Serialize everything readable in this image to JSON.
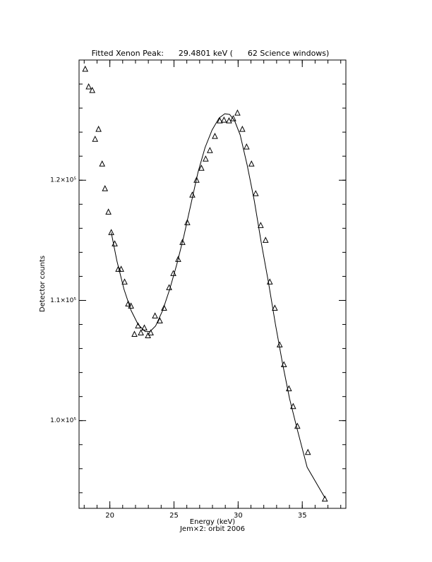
{
  "chart_data": {
    "type": "scatter",
    "title": "Fitted Xenon Peak:      29.4801 keV (      62 Science windows)",
    "x_label": "Energy (keV)",
    "subtitle": "Jem×2: orbit 2006",
    "y_label": "Detector counts",
    "xlim": [
      17.6,
      38.4
    ],
    "ylim": [
      92700,
      130000
    ],
    "xticks": [
      20,
      25,
      30,
      35
    ],
    "yticks": [
      {
        "value": 100000,
        "label": "1.0×10⁵"
      },
      {
        "value": 110000,
        "label": "1.1×10⁵"
      },
      {
        "value": 120000,
        "label": "1.2×10⁵"
      }
    ],
    "xminor": 5,
    "yminor": 5,
    "color": "#000000",
    "series": [
      {
        "name": "data",
        "x": [
          18.08,
          18.35,
          18.63,
          18.85,
          19.12,
          19.4,
          19.62,
          19.89,
          20.11,
          20.38,
          20.66,
          20.88,
          21.15,
          21.43,
          21.65,
          21.92,
          22.2,
          22.42,
          22.69,
          22.97,
          23.19,
          23.52,
          23.9,
          24.23,
          24.62,
          24.95,
          25.33,
          25.66,
          26.04,
          26.43,
          26.76,
          27.14,
          27.47,
          27.8,
          28.19,
          28.57,
          28.9,
          29.29,
          29.62,
          29.95,
          30.33,
          30.66,
          31.04,
          31.37,
          31.76,
          32.14,
          32.47,
          32.86,
          33.24,
          33.57,
          33.96,
          34.29,
          34.62,
          35.44,
          36.76
        ],
        "values": [
          129235,
          127765,
          127470,
          123410,
          124235,
          121350,
          119295,
          117350,
          115645,
          114705,
          112590,
          112590,
          111530,
          109705,
          109530,
          107177,
          107880,
          107295,
          107705,
          107060,
          107295,
          108705,
          108295,
          109353,
          111060,
          112235,
          113410,
          114825,
          116470,
          118765,
          120000,
          121000,
          121765,
          122470,
          123650,
          124940,
          125000,
          124940,
          125120,
          125590,
          124235,
          122765,
          121350,
          118880,
          116235,
          115000,
          111530,
          109353,
          106295,
          104650,
          102650,
          101175,
          99530,
          97355,
          93470
        ]
      },
      {
        "name": "fit",
        "x": [
          20.11,
          20.55,
          21.1,
          21.65,
          22.2,
          22.75,
          23.13,
          23.57,
          24.12,
          24.67,
          25.22,
          25.77,
          26.32,
          26.87,
          27.42,
          27.97,
          28.52,
          28.96,
          29.34,
          29.73,
          30.16,
          30.71,
          31.26,
          31.81,
          32.36,
          32.91,
          33.46,
          34.01,
          34.56,
          35.38,
          36.76
        ],
        "values": [
          115645,
          113290,
          110940,
          109175,
          108000,
          107410,
          107410,
          107880,
          109175,
          110940,
          113000,
          115350,
          118000,
          120650,
          122710,
          124180,
          125180,
          125530,
          125470,
          124940,
          123765,
          121235,
          118295,
          114765,
          111530,
          108000,
          104765,
          101825,
          99470,
          96120,
          93590
        ]
      }
    ]
  }
}
